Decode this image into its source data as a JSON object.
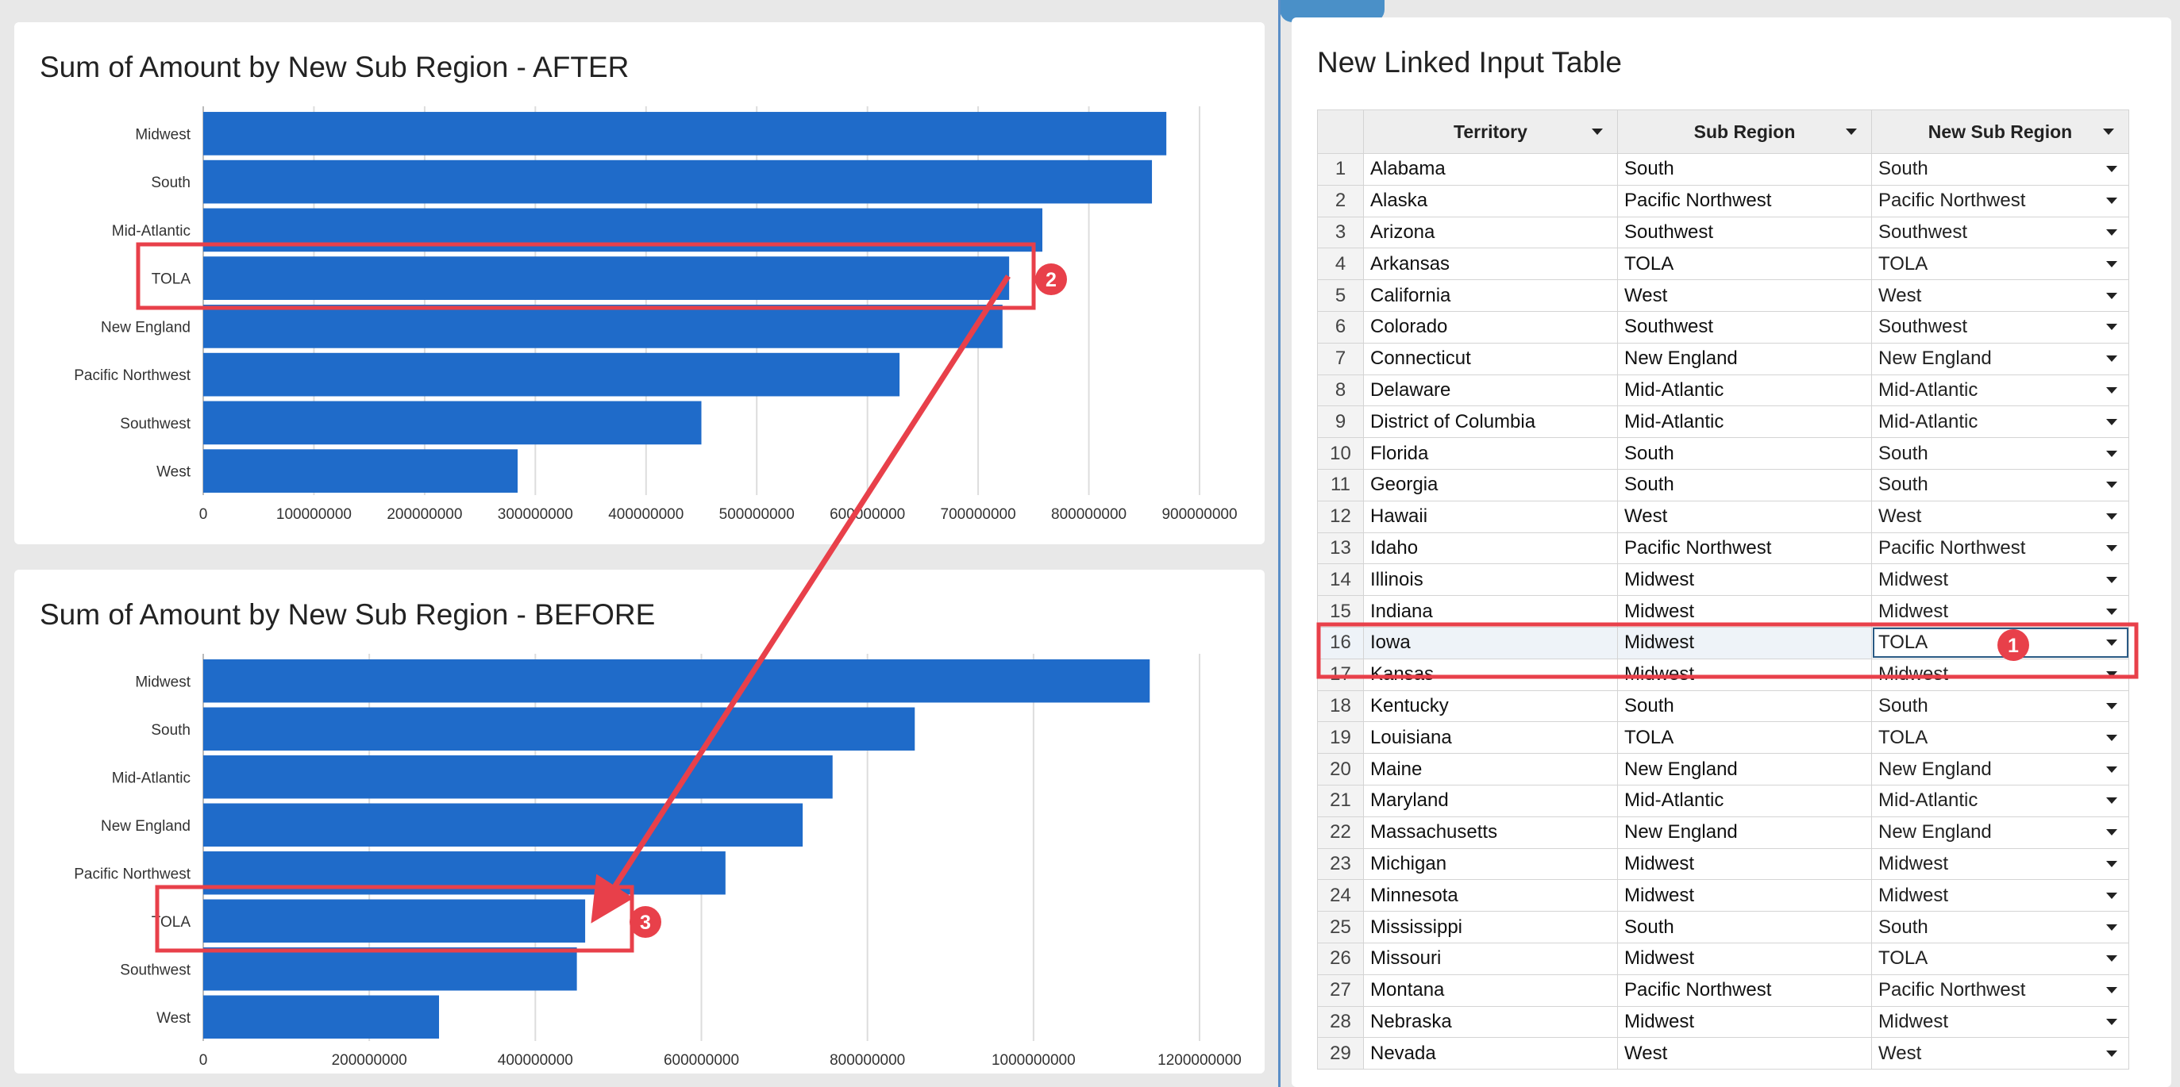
{
  "after_chart": {
    "title": "Sum of Amount by New Sub Region - AFTER",
    "chart_data": {
      "type": "bar",
      "orientation": "horizontal",
      "categories": [
        "Midwest",
        "South",
        "Mid-Atlantic",
        "TOLA",
        "New England",
        "Pacific Northwest",
        "Southwest",
        "West"
      ],
      "values": [
        870000000,
        857000000,
        758000000,
        728000000,
        722000000,
        629000000,
        450000000,
        284000000
      ],
      "xlim": [
        0,
        900000000
      ],
      "xticks": [
        "0",
        "100000000",
        "200000000",
        "300000000",
        "400000000",
        "500000000",
        "600000000",
        "700000000",
        "800000000",
        "900000000"
      ],
      "tick_step": 100000000,
      "grid": true,
      "bar_color": "#1f6bc9"
    }
  },
  "before_chart": {
    "title": "Sum of Amount by New Sub Region - BEFORE",
    "chart_data": {
      "type": "bar",
      "orientation": "horizontal",
      "categories": [
        "Midwest",
        "South",
        "Mid-Atlantic",
        "New England",
        "Pacific Northwest",
        "TOLA",
        "Southwest",
        "West"
      ],
      "values": [
        1140000000,
        857000000,
        758000000,
        722000000,
        629000000,
        460000000,
        450000000,
        284000000
      ],
      "xlim": [
        0,
        1200000000
      ],
      "xticks": [
        "0",
        "200000000",
        "400000000",
        "600000000",
        "800000000",
        "1000000000",
        "1200000000"
      ],
      "tick_step": 200000000,
      "grid": true,
      "bar_color": "#1f6bc9"
    }
  },
  "table": {
    "title": "New Linked Input Table",
    "columns": [
      "Territory",
      "Sub Region",
      "New Sub Region"
    ],
    "selected_row": 16,
    "rows": [
      {
        "n": "1",
        "territory": "Alabama",
        "sub": "South",
        "new": "South"
      },
      {
        "n": "2",
        "territory": "Alaska",
        "sub": "Pacific Northwest",
        "new": "Pacific Northwest"
      },
      {
        "n": "3",
        "territory": "Arizona",
        "sub": "Southwest",
        "new": "Southwest"
      },
      {
        "n": "4",
        "territory": "Arkansas",
        "sub": "TOLA",
        "new": "TOLA"
      },
      {
        "n": "5",
        "territory": "California",
        "sub": "West",
        "new": "West"
      },
      {
        "n": "6",
        "territory": "Colorado",
        "sub": "Southwest",
        "new": "Southwest"
      },
      {
        "n": "7",
        "territory": "Connecticut",
        "sub": "New England",
        "new": "New England"
      },
      {
        "n": "8",
        "territory": "Delaware",
        "sub": "Mid-Atlantic",
        "new": "Mid-Atlantic"
      },
      {
        "n": "9",
        "territory": "District of Columbia",
        "sub": "Mid-Atlantic",
        "new": "Mid-Atlantic"
      },
      {
        "n": "10",
        "territory": "Florida",
        "sub": "South",
        "new": "South"
      },
      {
        "n": "11",
        "territory": "Georgia",
        "sub": "South",
        "new": "South"
      },
      {
        "n": "12",
        "territory": "Hawaii",
        "sub": "West",
        "new": "West"
      },
      {
        "n": "13",
        "territory": "Idaho",
        "sub": "Pacific Northwest",
        "new": "Pacific Northwest"
      },
      {
        "n": "14",
        "territory": "Illinois",
        "sub": "Midwest",
        "new": "Midwest"
      },
      {
        "n": "15",
        "territory": "Indiana",
        "sub": "Midwest",
        "new": "Midwest"
      },
      {
        "n": "16",
        "territory": "Iowa",
        "sub": "Midwest",
        "new": "TOLA"
      },
      {
        "n": "17",
        "territory": "Kansas",
        "sub": "Midwest",
        "new": "Midwest"
      },
      {
        "n": "18",
        "territory": "Kentucky",
        "sub": "South",
        "new": "South"
      },
      {
        "n": "19",
        "territory": "Louisiana",
        "sub": "TOLA",
        "new": "TOLA"
      },
      {
        "n": "20",
        "territory": "Maine",
        "sub": "New England",
        "new": "New England"
      },
      {
        "n": "21",
        "territory": "Maryland",
        "sub": "Mid-Atlantic",
        "new": "Mid-Atlantic"
      },
      {
        "n": "22",
        "territory": "Massachusetts",
        "sub": "New England",
        "new": "New England"
      },
      {
        "n": "23",
        "territory": "Michigan",
        "sub": "Midwest",
        "new": "Midwest"
      },
      {
        "n": "24",
        "territory": "Minnesota",
        "sub": "Midwest",
        "new": "Midwest"
      },
      {
        "n": "25",
        "territory": "Mississippi",
        "sub": "South",
        "new": "South"
      },
      {
        "n": "26",
        "territory": "Missouri",
        "sub": "Midwest",
        "new": "TOLA"
      },
      {
        "n": "27",
        "territory": "Montana",
        "sub": "Pacific Northwest",
        "new": "Pacific Northwest"
      },
      {
        "n": "28",
        "territory": "Nebraska",
        "sub": "Midwest",
        "new": "Midwest"
      },
      {
        "n": "29",
        "territory": "Nevada",
        "sub": "West",
        "new": "West"
      }
    ]
  },
  "annotations": {
    "markers": [
      "1",
      "2",
      "3"
    ],
    "color": "#e8404a"
  }
}
